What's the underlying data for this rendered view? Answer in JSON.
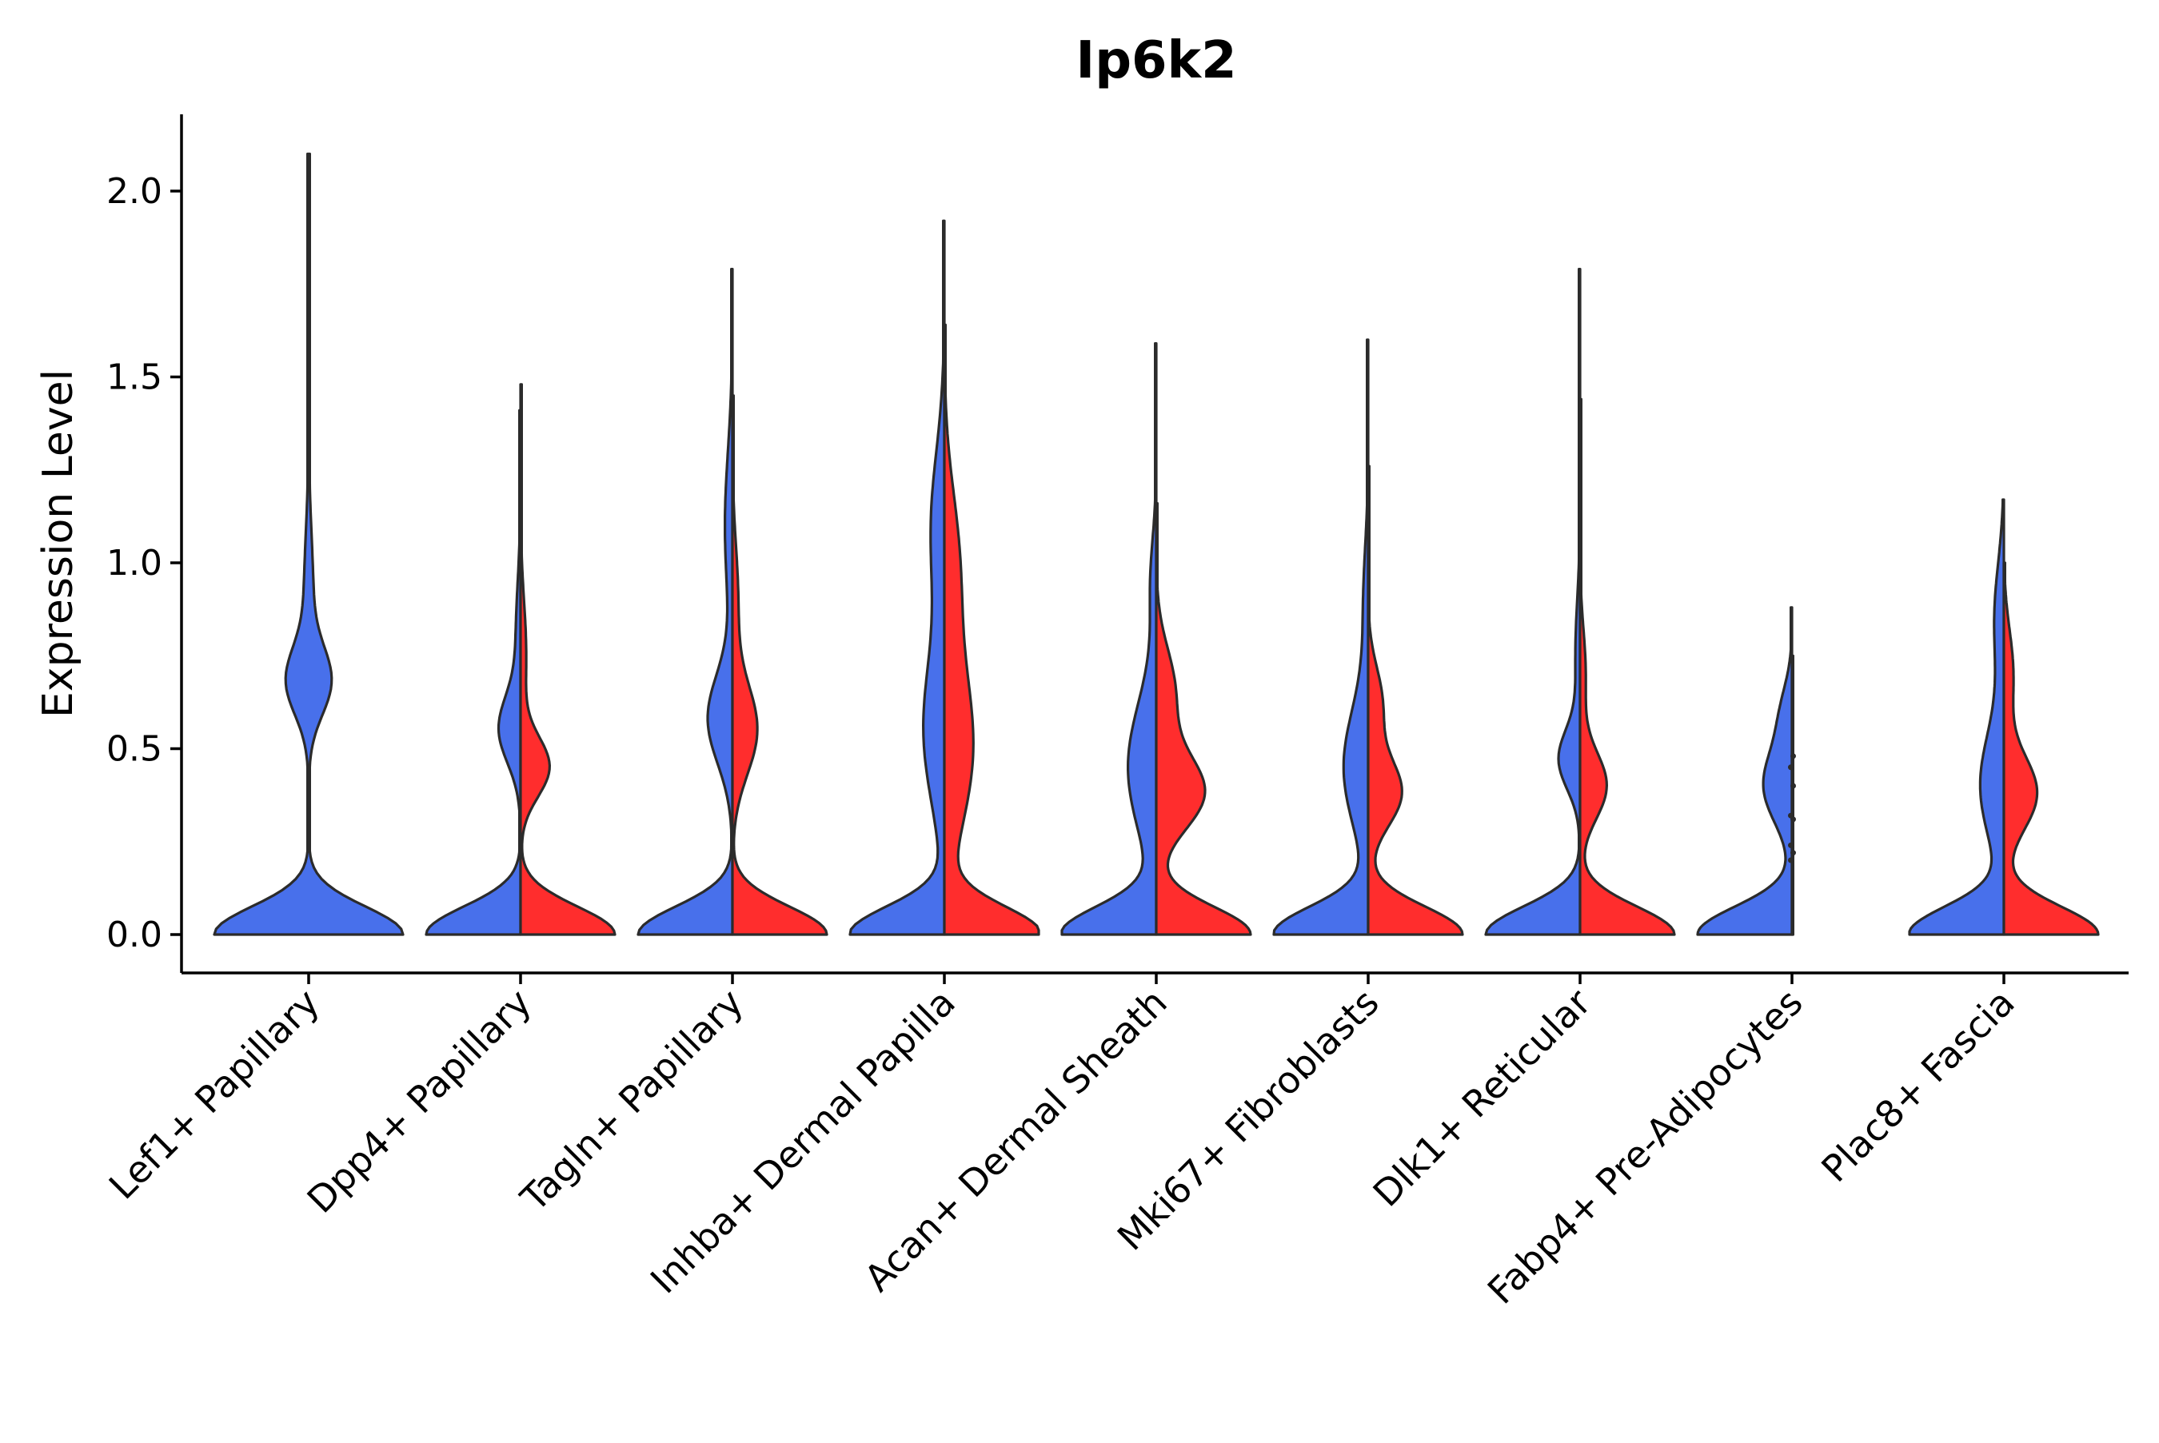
{
  "chart_data": {
    "type": "violin",
    "title": "Ip6k2",
    "xlabel": "",
    "ylabel": "Expression Level",
    "ylim": [
      -0.1,
      2.2
    ],
    "yticks": [
      0.0,
      0.5,
      1.0,
      1.5,
      2.0
    ],
    "ytick_labels": [
      "0.0",
      "0.5",
      "1.0",
      "1.5",
      "2.0"
    ],
    "categories": [
      "Lef1+ Papillary",
      "Dpp4+ Papillary",
      "Tagln+ Papillary",
      "Inhba+ Dermal Papilla",
      "Acan+ Dermal Sheath",
      "Mki67+ Fibroblasts",
      "Dlk1+ Reticular",
      "Fabp4+ Pre-Adipocytes",
      "Plac8+ Fascia"
    ],
    "series_colors": {
      "blue": "#4870eb",
      "red": "#ff2d2d"
    },
    "violins": [
      {
        "category": "Lef1+ Papillary",
        "split": "single",
        "color": "#4870eb",
        "max": 2.1,
        "zero_width": 1.0,
        "bumps": [
          {
            "y": 0.68,
            "w": 0.22,
            "s": 0.09
          },
          {
            "y": 0.9,
            "w": 0.05,
            "s": 0.18
          }
        ]
      },
      {
        "category": "Dpp4+ Papillary",
        "split": "left",
        "color": "#4870eb",
        "max": 1.41,
        "zero_width": 1.0,
        "bumps": [
          {
            "y": 0.55,
            "w": 0.22,
            "s": 0.09
          },
          {
            "y": 0.8,
            "w": 0.05,
            "s": 0.15
          }
        ]
      },
      {
        "category": "Dpp4+ Papillary",
        "split": "right",
        "color": "#ff2d2d",
        "max": 1.48,
        "zero_width": 1.0,
        "bumps": [
          {
            "y": 0.45,
            "w": 0.3,
            "s": 0.08
          },
          {
            "y": 0.75,
            "w": 0.06,
            "s": 0.15
          }
        ]
      },
      {
        "category": "Tagln+ Papillary",
        "split": "left",
        "color": "#4870eb",
        "max": 1.79,
        "zero_width": 1.0,
        "bumps": [
          {
            "y": 0.58,
            "w": 0.26,
            "s": 0.12
          },
          {
            "y": 1.1,
            "w": 0.08,
            "s": 0.2
          }
        ]
      },
      {
        "category": "Tagln+ Papillary",
        "split": "right",
        "color": "#ff2d2d",
        "max": 1.45,
        "zero_width": 1.0,
        "bumps": [
          {
            "y": 0.55,
            "w": 0.26,
            "s": 0.12
          },
          {
            "y": 0.9,
            "w": 0.06,
            "s": 0.15
          }
        ]
      },
      {
        "category": "Inhba+ Dermal Papilla",
        "split": "left",
        "color": "#4870eb",
        "max": 1.92,
        "zero_width": 1.0,
        "bumps": [
          {
            "y": 0.55,
            "w": 0.22,
            "s": 0.2
          },
          {
            "y": 1.1,
            "w": 0.14,
            "s": 0.2
          }
        ]
      },
      {
        "category": "Inhba+ Dermal Papilla",
        "split": "right",
        "color": "#ff2d2d",
        "max": 1.64,
        "zero_width": 1.0,
        "bumps": [
          {
            "y": 0.5,
            "w": 0.3,
            "s": 0.22
          },
          {
            "y": 1.0,
            "w": 0.15,
            "s": 0.2
          }
        ]
      },
      {
        "category": "Acan+ Dermal Sheath",
        "split": "left",
        "color": "#4870eb",
        "max": 1.59,
        "zero_width": 1.0,
        "bumps": [
          {
            "y": 0.45,
            "w": 0.3,
            "s": 0.18
          },
          {
            "y": 0.95,
            "w": 0.06,
            "s": 0.12
          }
        ]
      },
      {
        "category": "Acan+ Dermal Sheath",
        "split": "right",
        "color": "#ff2d2d",
        "max": 1.16,
        "zero_width": 1.0,
        "bumps": [
          {
            "y": 0.38,
            "w": 0.5,
            "s": 0.1
          },
          {
            "y": 0.65,
            "w": 0.2,
            "s": 0.12
          }
        ]
      },
      {
        "category": "Mki67+ Fibroblasts",
        "split": "left",
        "color": "#4870eb",
        "max": 1.6,
        "zero_width": 1.0,
        "bumps": [
          {
            "y": 0.45,
            "w": 0.26,
            "s": 0.16
          },
          {
            "y": 0.9,
            "w": 0.05,
            "s": 0.15
          }
        ]
      },
      {
        "category": "Mki67+ Fibroblasts",
        "split": "right",
        "color": "#ff2d2d",
        "max": 1.26,
        "zero_width": 1.0,
        "bumps": [
          {
            "y": 0.38,
            "w": 0.35,
            "s": 0.09
          },
          {
            "y": 0.62,
            "w": 0.15,
            "s": 0.1
          }
        ]
      },
      {
        "category": "Dlk1+ Reticular",
        "split": "left",
        "color": "#4870eb",
        "max": 1.79,
        "zero_width": 1.0,
        "bumps": [
          {
            "y": 0.47,
            "w": 0.22,
            "s": 0.08
          },
          {
            "y": 0.75,
            "w": 0.05,
            "s": 0.15
          }
        ]
      },
      {
        "category": "Dlk1+ Reticular",
        "split": "right",
        "color": "#ff2d2d",
        "max": 1.44,
        "zero_width": 1.0,
        "bumps": [
          {
            "y": 0.4,
            "w": 0.28,
            "s": 0.09
          },
          {
            "y": 0.7,
            "w": 0.06,
            "s": 0.12
          }
        ]
      },
      {
        "category": "Fabp4+ Pre-Adipocytes",
        "split": "left",
        "color": "#4870eb",
        "max": 0.88,
        "zero_width": 1.0,
        "bumps": [
          {
            "y": 0.4,
            "w": 0.3,
            "s": 0.1
          },
          {
            "y": 0.6,
            "w": 0.1,
            "s": 0.08
          }
        ]
      },
      {
        "category": "Fabp4+ Pre-Adipocytes",
        "split": "right",
        "color": "#ff2d2d",
        "max": 0.75,
        "zero_width": 0.0,
        "bumps": [],
        "points": [
          0.2,
          0.22,
          0.24,
          0.31,
          0.32,
          0.4,
          0.45,
          0.48
        ]
      },
      {
        "category": "Plac8+ Fascia",
        "split": "left",
        "color": "#4870eb",
        "max": 1.17,
        "zero_width": 1.0,
        "bumps": [
          {
            "y": 0.4,
            "w": 0.25,
            "s": 0.15
          },
          {
            "y": 0.85,
            "w": 0.1,
            "s": 0.15
          }
        ]
      },
      {
        "category": "Plac8+ Fascia",
        "split": "right",
        "color": "#ff2d2d",
        "max": 1.0,
        "zero_width": 1.0,
        "bumps": [
          {
            "y": 0.38,
            "w": 0.35,
            "s": 0.1
          },
          {
            "y": 0.7,
            "w": 0.1,
            "s": 0.12
          }
        ]
      }
    ]
  }
}
